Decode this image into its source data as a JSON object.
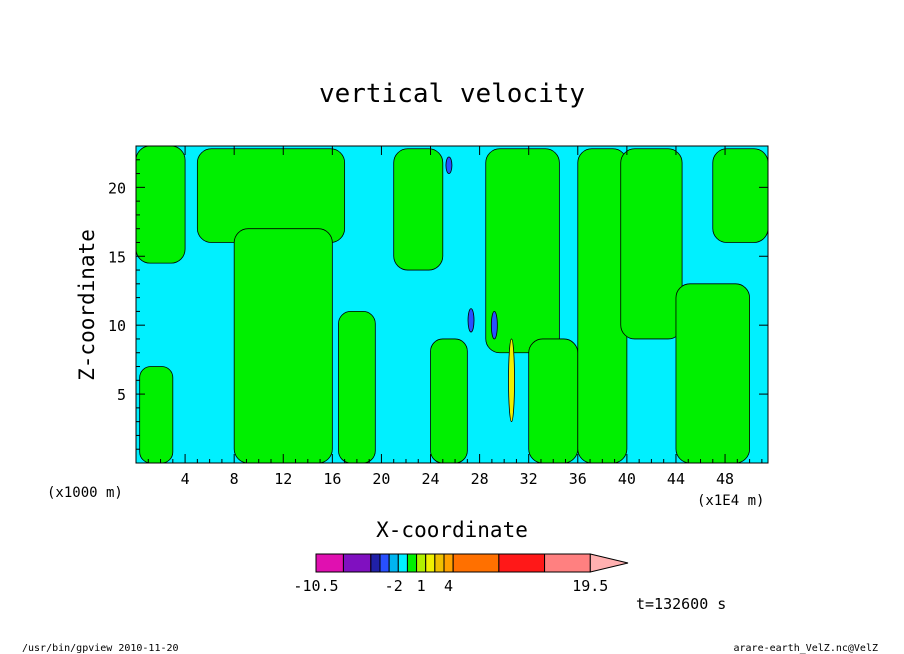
{
  "chart_data": {
    "type": "heatmap",
    "title": "vertical velocity",
    "xlabel": "X-coordinate",
    "ylabel": "Z-coordinate",
    "x_unit_left": "(x1000 m)",
    "x_unit_right": "(x1E4 m)",
    "xlim": [
      0,
      51.5
    ],
    "ylim": [
      0,
      23
    ],
    "x_ticks": [
      4,
      8,
      12,
      16,
      20,
      24,
      28,
      32,
      36,
      40,
      44,
      48
    ],
    "y_ticks": [
      5,
      10,
      15,
      20
    ],
    "time_label": "t=132600 s",
    "footer_left": "/usr/bin/gpview   2010-11-20",
    "footer_right": "arare-earth_VelZ.nc@VelZ",
    "colorbar": {
      "labels": [
        {
          "text": "-10.5",
          "value": -10.5
        },
        {
          "text": "-2",
          "value": -2
        },
        {
          "text": "1",
          "value": 1
        },
        {
          "text": "4",
          "value": 4
        },
        {
          "text": "19.5",
          "value": 19.5
        }
      ],
      "levels": [
        {
          "lo": -10.5,
          "hi": -7.5,
          "color": "#e010b0"
        },
        {
          "lo": -7.5,
          "hi": -4.5,
          "color": "#8010c0"
        },
        {
          "lo": -4.5,
          "hi": -3.5,
          "color": "#2020a8"
        },
        {
          "lo": -3.5,
          "hi": -2.5,
          "color": "#2850ff"
        },
        {
          "lo": -2.5,
          "hi": -1.5,
          "color": "#00b4f0"
        },
        {
          "lo": -1.5,
          "hi": -0.5,
          "color": "#00f0ff"
        },
        {
          "lo": -0.5,
          "hi": 0.5,
          "color": "#00f000"
        },
        {
          "lo": 0.5,
          "hi": 1.5,
          "color": "#b0f000"
        },
        {
          "lo": 1.5,
          "hi": 2.5,
          "color": "#f0f000"
        },
        {
          "lo": 2.5,
          "hi": 3.5,
          "color": "#f0c000"
        },
        {
          "lo": 3.5,
          "hi": 4.5,
          "color": "#ffa000"
        },
        {
          "lo": 4.5,
          "hi": 9.5,
          "color": "#ff7000"
        },
        {
          "lo": 9.5,
          "hi": 14.5,
          "color": "#ff1818"
        },
        {
          "lo": 14.5,
          "hi": 19.5,
          "color": "#ff8080"
        },
        {
          "lo": 19.5,
          "hi": 22.5,
          "color": "#ffb0b0",
          "open": true
        }
      ]
    },
    "regions": [
      {
        "level": "downdraft",
        "color": "#00f0ff",
        "x": [
          0,
          51.5
        ],
        "z": [
          0,
          23
        ]
      },
      {
        "level": "updraft",
        "color": "#00f000",
        "x": [
          0,
          4
        ],
        "z": [
          14.5,
          23
        ]
      },
      {
        "level": "updraft",
        "color": "#00f000",
        "x": [
          0.3,
          3
        ],
        "z": [
          0,
          7
        ]
      },
      {
        "level": "updraft",
        "color": "#00f000",
        "x": [
          5,
          17
        ],
        "z": [
          16,
          22.8
        ]
      },
      {
        "level": "updraft",
        "color": "#00f000",
        "x": [
          8,
          16
        ],
        "z": [
          0,
          17
        ]
      },
      {
        "level": "updraft",
        "color": "#00f000",
        "x": [
          16.5,
          19.5
        ],
        "z": [
          0,
          11
        ]
      },
      {
        "level": "updraft",
        "color": "#00f000",
        "x": [
          21,
          25
        ],
        "z": [
          14,
          22.8
        ]
      },
      {
        "level": "updraft",
        "color": "#00f000",
        "x": [
          24,
          27
        ],
        "z": [
          0,
          9
        ]
      },
      {
        "level": "updraft",
        "color": "#00f000",
        "x": [
          28.5,
          34.5
        ],
        "z": [
          8,
          22.8
        ]
      },
      {
        "level": "updraft",
        "color": "#00f000",
        "x": [
          32,
          36
        ],
        "z": [
          0,
          9
        ]
      },
      {
        "level": "updraft",
        "color": "#00f000",
        "x": [
          36,
          40
        ],
        "z": [
          0,
          22.8
        ]
      },
      {
        "level": "updraft",
        "color": "#00f000",
        "x": [
          39.5,
          44.5
        ],
        "z": [
          9,
          22.8
        ]
      },
      {
        "level": "updraft",
        "color": "#00f000",
        "x": [
          44,
          50
        ],
        "z": [
          0,
          13
        ]
      },
      {
        "level": "updraft",
        "color": "#00f000",
        "x": [
          47,
          51.5
        ],
        "z": [
          16,
          22.8
        ]
      }
    ],
    "features": [
      {
        "name": "intense-updraft-core",
        "color": "#f0f000",
        "x": 30.6,
        "z": [
          3,
          9
        ]
      },
      {
        "name": "strong-downdraft-streak",
        "color": "#2850ff",
        "x": 27.3,
        "z": [
          9.5,
          11.2
        ]
      },
      {
        "name": "strong-downdraft-streak",
        "color": "#2850ff",
        "x": 29.2,
        "z": [
          9,
          11
        ]
      },
      {
        "name": "strong-downdraft-streak",
        "color": "#2850ff",
        "x": 25.5,
        "z": [
          21,
          22.2
        ]
      }
    ]
  }
}
